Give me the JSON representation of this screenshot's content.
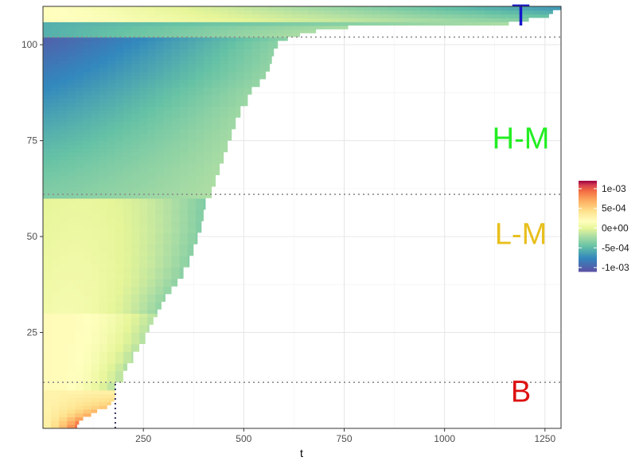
{
  "chart_data": {
    "type": "heatmap",
    "xlabel": "t",
    "ylabel": "",
    "xlim": [
      0,
      1290
    ],
    "ylim": [
      0,
      110
    ],
    "x_ticks": [
      250,
      500,
      750,
      1000,
      1250
    ],
    "y_ticks": [
      25,
      50,
      75,
      100
    ],
    "grid": true,
    "colormap": "Spectral (reversed)",
    "color_range": [
      -0.0011,
      0.0012
    ],
    "legend": {
      "position": "right",
      "labels": [
        "1e-03",
        "5e-04",
        "0e+00",
        "-5e-04",
        "-1e-03"
      ],
      "values": [
        0.001,
        0.0005,
        0,
        -0.0005,
        -0.001
      ]
    },
    "reference_lines": {
      "horizontal": [
        12,
        61,
        102
      ],
      "vertical": [
        {
          "x": 180,
          "y_to": 12
        }
      ]
    },
    "region_labels": [
      {
        "text": "T",
        "x": 1190,
        "y": 105,
        "color": "#1515cc"
      },
      {
        "text": "H-M",
        "x": 1190,
        "y": 73,
        "color": "#22ee22"
      },
      {
        "text": "L-M",
        "x": 1190,
        "y": 48,
        "color": "#e8bf1c"
      },
      {
        "text": "B",
        "x": 1190,
        "y": 7,
        "color": "#dd1111"
      }
    ],
    "row_end_t": [
      [
        1,
        85
      ],
      [
        2,
        90
      ],
      [
        3,
        100
      ],
      [
        4,
        120
      ],
      [
        5,
        135
      ],
      [
        6,
        160
      ],
      [
        7,
        170
      ],
      [
        8,
        178
      ],
      [
        12,
        180
      ],
      [
        15,
        200
      ],
      [
        17,
        210
      ],
      [
        20,
        225
      ],
      [
        22,
        240
      ],
      [
        25,
        255
      ],
      [
        27,
        265
      ],
      [
        29,
        275
      ],
      [
        31,
        285
      ],
      [
        33,
        295
      ],
      [
        35,
        305
      ],
      [
        37,
        320
      ],
      [
        39,
        335
      ],
      [
        42,
        350
      ],
      [
        45,
        365
      ],
      [
        48,
        375
      ],
      [
        51,
        385
      ],
      [
        54,
        395
      ],
      [
        57,
        400
      ],
      [
        60,
        405
      ],
      [
        63,
        420
      ],
      [
        66,
        430
      ],
      [
        69,
        440
      ],
      [
        72,
        450
      ],
      [
        75,
        460
      ],
      [
        78,
        470
      ],
      [
        81,
        480
      ],
      [
        84,
        492
      ],
      [
        87,
        510
      ],
      [
        89,
        520
      ],
      [
        91,
        540
      ],
      [
        93,
        555
      ],
      [
        95,
        565
      ],
      [
        97,
        570
      ],
      [
        99,
        575
      ],
      [
        101,
        585
      ],
      [
        102,
        610
      ],
      [
        103,
        640
      ],
      [
        104,
        680
      ],
      [
        105,
        760
      ],
      [
        106,
        1160
      ],
      [
        107,
        1210
      ],
      [
        108,
        1260
      ],
      [
        109,
        1270
      ],
      [
        110,
        1290
      ]
    ]
  }
}
